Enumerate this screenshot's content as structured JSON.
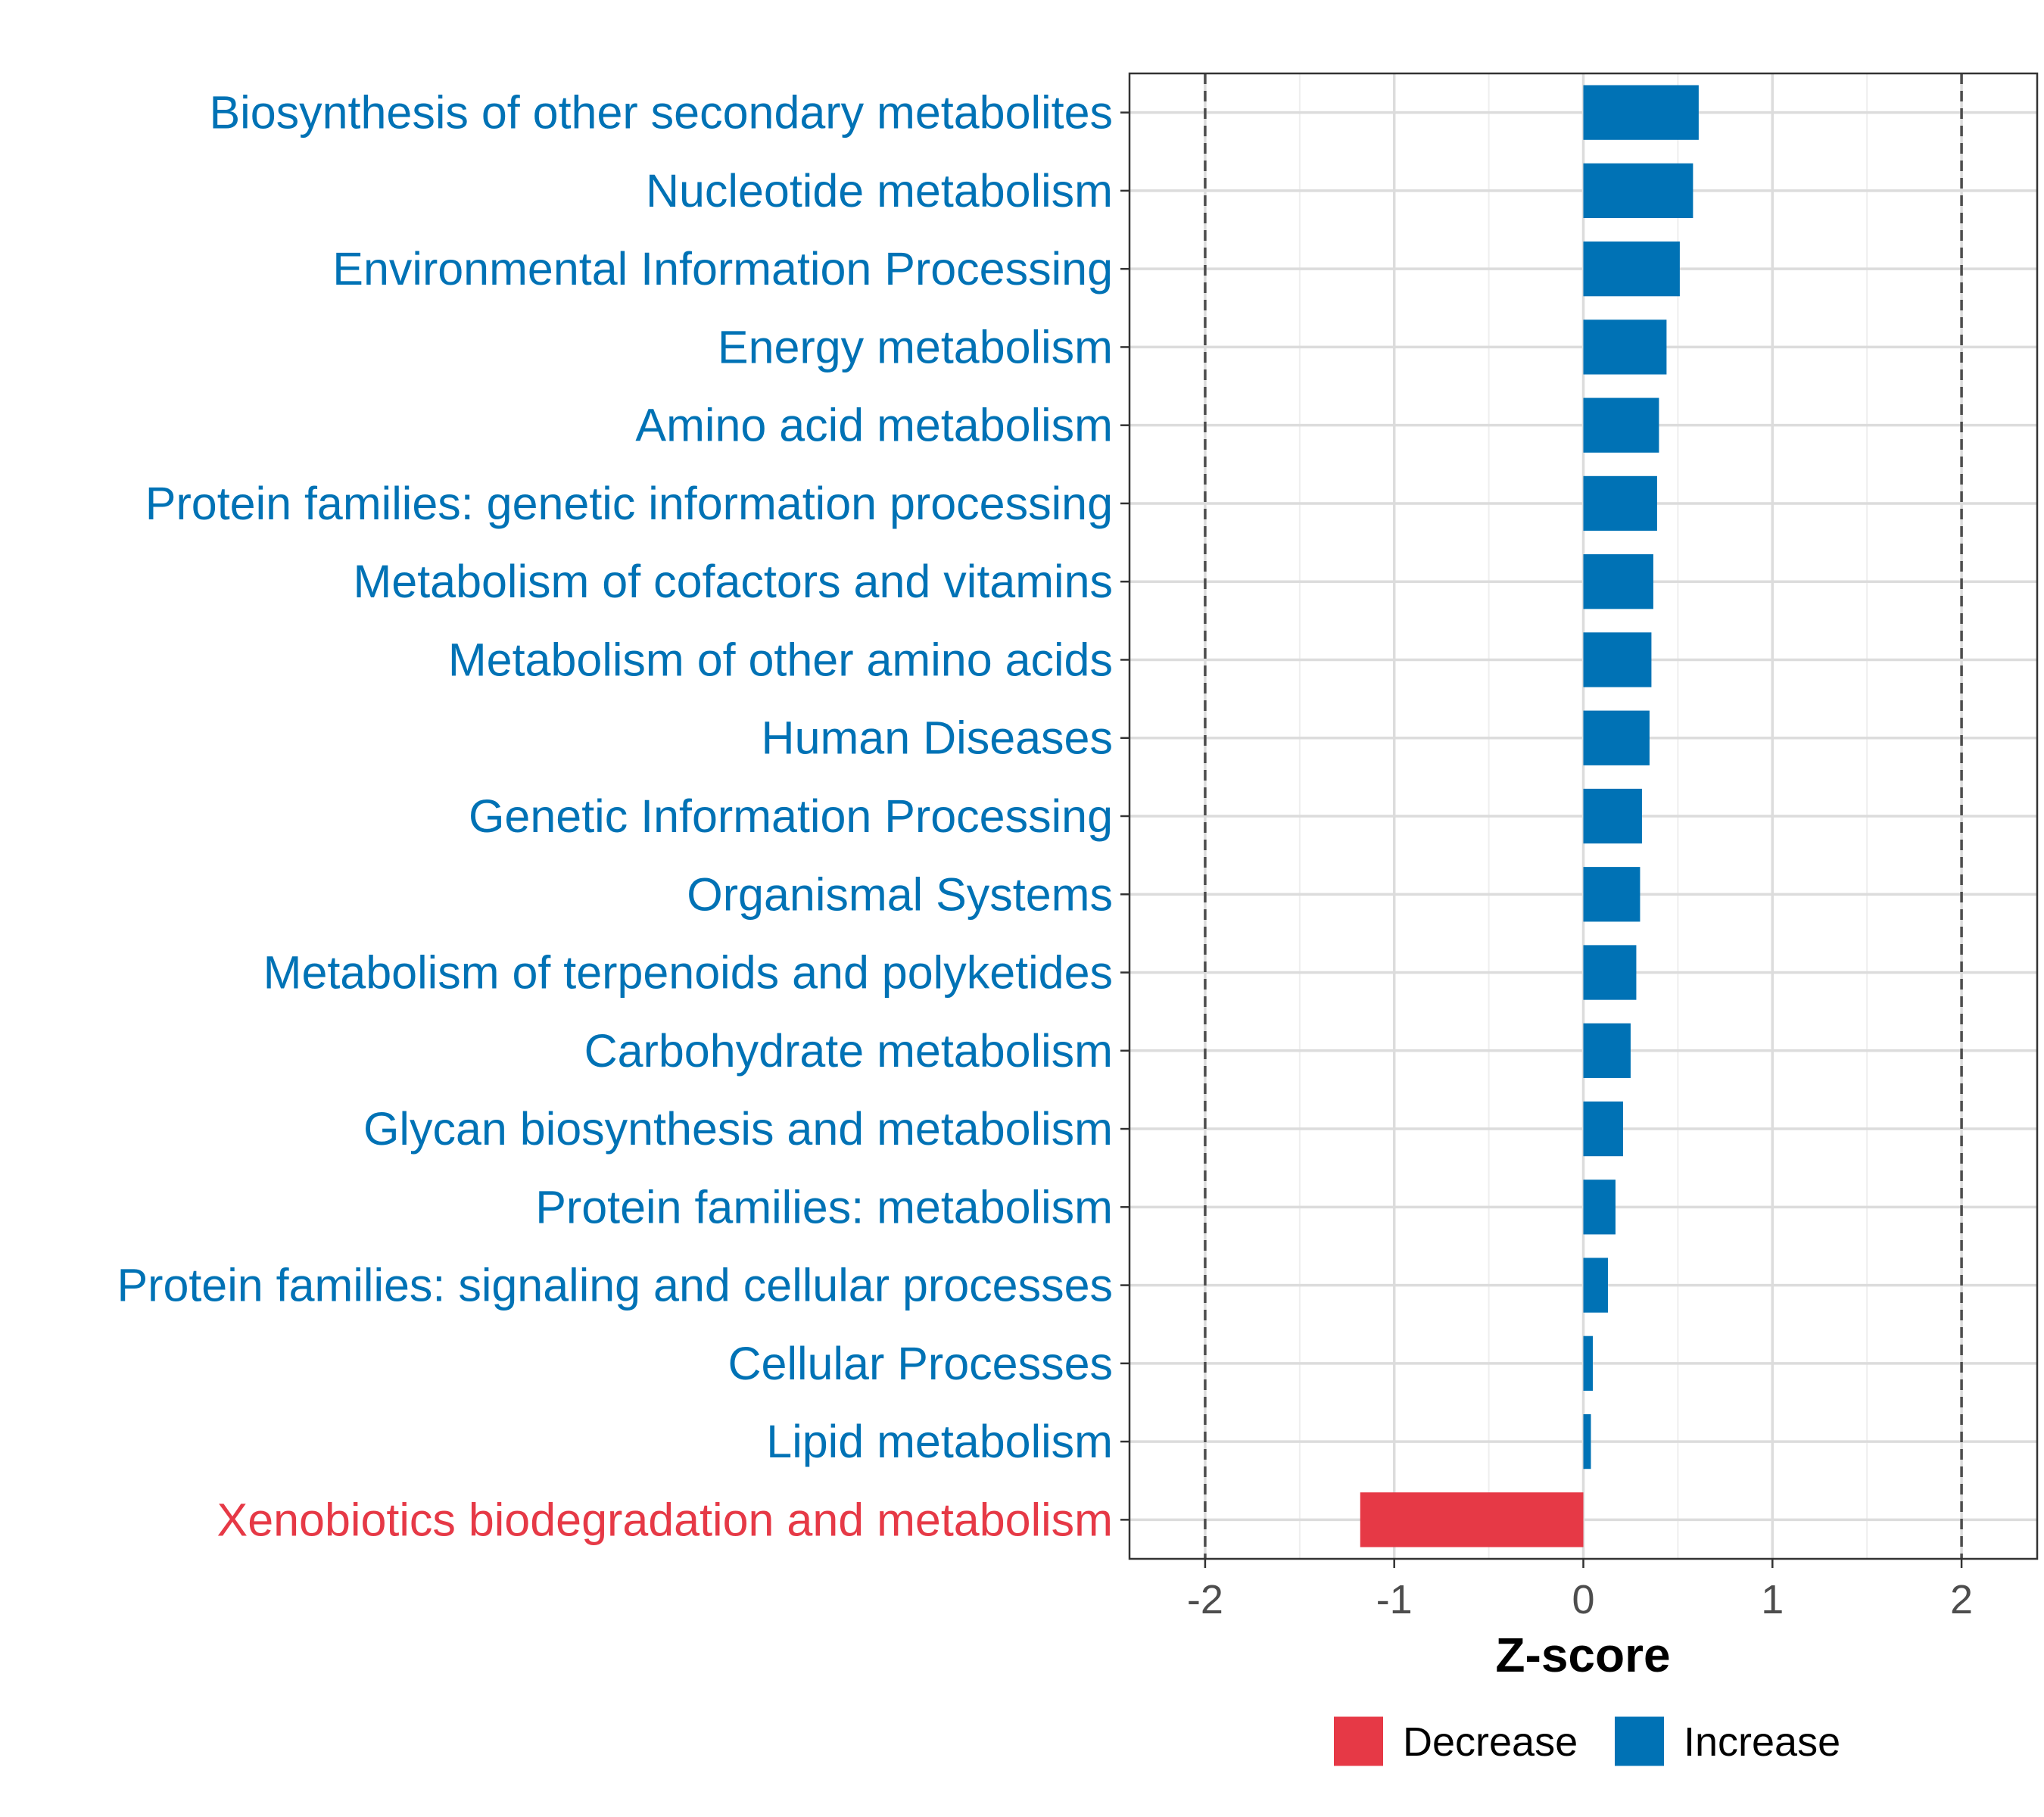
{
  "chart_data": {
    "type": "bar",
    "orientation": "horizontal",
    "title": "",
    "xlabel": "Z-score",
    "ylabel": "",
    "xlim": [
      -2.4,
      2.4
    ],
    "xticks": [
      -2,
      -1,
      0,
      1,
      2
    ],
    "xtick_labels": [
      "-2",
      "-1",
      "0",
      "1",
      "2"
    ],
    "reference_lines": [
      -2,
      2
    ],
    "grid": true,
    "legend_position": "bottom",
    "categories": [
      "Biosynthesis of other secondary metabolites",
      "Nucleotide metabolism",
      "Environmental Information Processing",
      "Energy metabolism",
      "Amino acid metabolism",
      "Protein families: genetic information processing",
      "Metabolism of cofactors and vitamins",
      "Metabolism of other amino acids",
      "Human Diseases",
      "Genetic Information Processing",
      "Organismal Systems",
      "Metabolism of terpenoids and polyketides",
      "Carbohydrate metabolism",
      "Glycan biosynthesis and metabolism",
      "Protein families: metabolism",
      "Protein families: signaling and cellular processes",
      "Cellular Processes",
      "Lipid metabolism",
      "Xenobiotics biodegradation and metabolism"
    ],
    "values": [
      0.61,
      0.58,
      0.51,
      0.44,
      0.4,
      0.39,
      0.37,
      0.36,
      0.35,
      0.31,
      0.3,
      0.28,
      0.25,
      0.21,
      0.17,
      0.13,
      0.05,
      0.04,
      -1.18
    ],
    "groups": [
      "Increase",
      "Increase",
      "Increase",
      "Increase",
      "Increase",
      "Increase",
      "Increase",
      "Increase",
      "Increase",
      "Increase",
      "Increase",
      "Increase",
      "Increase",
      "Increase",
      "Increase",
      "Increase",
      "Increase",
      "Increase",
      "Decrease"
    ],
    "legend": [
      {
        "label": "Decrease",
        "color": "#e63946"
      },
      {
        "label": "Increase",
        "color": "#0072b5"
      }
    ],
    "colors": {
      "Increase": "#0072b5",
      "Decrease": "#e63946"
    }
  }
}
